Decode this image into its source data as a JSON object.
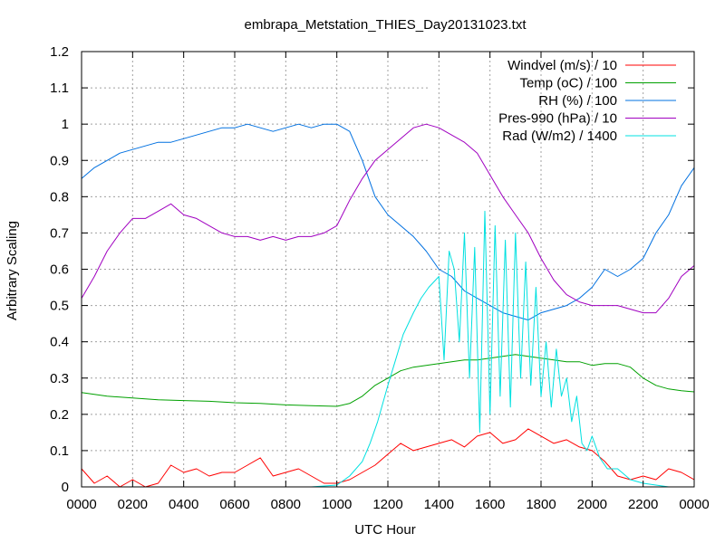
{
  "chart_data": {
    "type": "line",
    "title": "embrapa_Metstation_THIES_Day20131023.txt",
    "xlabel": "UTC Hour",
    "ylabel": "Arbitrary Scaling",
    "xlim": [
      0,
      24
    ],
    "ylim": [
      0,
      1.2
    ],
    "x_ticks": [
      0,
      2,
      4,
      6,
      8,
      10,
      12,
      14,
      16,
      18,
      20,
      22,
      24
    ],
    "x_tick_labels": [
      "0000",
      "0200",
      "0400",
      "0600",
      "0800",
      "1000",
      "1200",
      "1400",
      "1600",
      "1800",
      "2000",
      "2200",
      "0000"
    ],
    "y_ticks": [
      0,
      0.1,
      0.2,
      0.3,
      0.4,
      0.5,
      0.6,
      0.7,
      0.8,
      0.9,
      1,
      1.1,
      1.2
    ],
    "y_tick_labels": [
      "0",
      "0.1",
      "0.2",
      "0.3",
      "0.4",
      "0.5",
      "0.6",
      "0.7",
      "0.8",
      "0.9",
      "1",
      "1.1",
      "1.2"
    ],
    "grid": true,
    "legend_position": "top-right",
    "series": [
      {
        "name": "Windvel (m/s) / 10",
        "color": "#ff0000",
        "x": [
          0,
          0.5,
          1,
          1.5,
          2,
          2.5,
          3,
          3.5,
          4,
          4.5,
          5,
          5.5,
          6,
          6.5,
          7,
          7.5,
          8,
          8.5,
          9,
          9.5,
          10,
          10.5,
          11,
          11.5,
          12,
          12.5,
          13,
          13.5,
          14,
          14.5,
          15,
          15.5,
          16,
          16.5,
          17,
          17.5,
          18,
          18.5,
          19,
          19.5,
          20,
          20.5,
          21,
          21.5,
          22,
          22.5,
          23,
          23.5,
          24
        ],
        "y": [
          0.05,
          0.01,
          0.03,
          0.0,
          0.02,
          0.0,
          0.01,
          0.06,
          0.04,
          0.05,
          0.03,
          0.04,
          0.04,
          0.06,
          0.08,
          0.03,
          0.04,
          0.05,
          0.03,
          0.01,
          0.01,
          0.02,
          0.04,
          0.06,
          0.09,
          0.12,
          0.1,
          0.11,
          0.12,
          0.13,
          0.11,
          0.14,
          0.15,
          0.12,
          0.13,
          0.16,
          0.14,
          0.12,
          0.13,
          0.11,
          0.1,
          0.07,
          0.03,
          0.02,
          0.03,
          0.02,
          0.05,
          0.04,
          0.02
        ]
      },
      {
        "name": "Temp (oC) / 100",
        "color": "#00a000",
        "x": [
          0,
          1,
          2,
          3,
          4,
          5,
          6,
          7,
          8,
          9,
          10,
          10.5,
          11,
          11.5,
          12,
          12.5,
          13,
          13.5,
          14,
          14.5,
          15,
          15.5,
          16,
          16.5,
          17,
          17.5,
          18,
          18.5,
          19,
          19.5,
          20,
          20.5,
          21,
          21.5,
          22,
          22.5,
          23,
          23.5,
          24
        ],
        "y": [
          0.26,
          0.25,
          0.245,
          0.24,
          0.238,
          0.236,
          0.232,
          0.23,
          0.226,
          0.224,
          0.222,
          0.23,
          0.25,
          0.28,
          0.3,
          0.32,
          0.33,
          0.335,
          0.34,
          0.345,
          0.35,
          0.35,
          0.355,
          0.36,
          0.365,
          0.36,
          0.355,
          0.35,
          0.345,
          0.345,
          0.335,
          0.34,
          0.34,
          0.33,
          0.3,
          0.28,
          0.27,
          0.265,
          0.262
        ]
      },
      {
        "name": "RH (%) / 100",
        "color": "#0070e0",
        "x": [
          0,
          0.5,
          1,
          1.5,
          2,
          2.5,
          3,
          3.5,
          4,
          4.5,
          5,
          5.5,
          6,
          6.5,
          7,
          7.5,
          8,
          8.5,
          9,
          9.5,
          10,
          10.5,
          11,
          11.5,
          12,
          12.5,
          13,
          13.5,
          14,
          14.5,
          15,
          15.5,
          16,
          16.5,
          17,
          17.5,
          18,
          18.5,
          19,
          19.5,
          20,
          20.5,
          21,
          21.5,
          22,
          22.5,
          23,
          23.5,
          24
        ],
        "y": [
          0.85,
          0.88,
          0.9,
          0.92,
          0.93,
          0.94,
          0.95,
          0.95,
          0.96,
          0.97,
          0.98,
          0.99,
          0.99,
          1.0,
          0.99,
          0.98,
          0.99,
          1.0,
          0.99,
          1.0,
          1.0,
          0.98,
          0.9,
          0.8,
          0.75,
          0.72,
          0.69,
          0.65,
          0.6,
          0.58,
          0.54,
          0.52,
          0.5,
          0.48,
          0.47,
          0.46,
          0.48,
          0.49,
          0.5,
          0.52,
          0.55,
          0.6,
          0.58,
          0.6,
          0.63,
          0.7,
          0.75,
          0.83,
          0.88
        ]
      },
      {
        "name": "Pres-990 (hPa) / 10",
        "color": "#a000c0",
        "x": [
          0,
          0.5,
          1,
          1.5,
          2,
          2.5,
          3,
          3.5,
          4,
          4.5,
          5,
          5.5,
          6,
          6.5,
          7,
          7.5,
          8,
          8.5,
          9,
          9.5,
          10,
          10.5,
          11,
          11.5,
          12,
          12.5,
          13,
          13.5,
          14,
          14.5,
          15,
          15.5,
          16,
          16.5,
          17,
          17.5,
          18,
          18.5,
          19,
          19.5,
          20,
          20.5,
          21,
          21.5,
          22,
          22.5,
          23,
          23.5,
          24
        ],
        "y": [
          0.52,
          0.58,
          0.65,
          0.7,
          0.74,
          0.74,
          0.76,
          0.78,
          0.75,
          0.74,
          0.72,
          0.7,
          0.69,
          0.69,
          0.68,
          0.69,
          0.68,
          0.69,
          0.69,
          0.7,
          0.72,
          0.79,
          0.85,
          0.9,
          0.93,
          0.96,
          0.99,
          1.0,
          0.99,
          0.97,
          0.95,
          0.92,
          0.86,
          0.8,
          0.75,
          0.7,
          0.63,
          0.57,
          0.53,
          0.51,
          0.5,
          0.5,
          0.5,
          0.49,
          0.48,
          0.48,
          0.52,
          0.58,
          0.61
        ]
      },
      {
        "name": "Rad (W/m2) / 1400",
        "color": "#00e0e0",
        "x": [
          0,
          1,
          2,
          3,
          4,
          5,
          6,
          7,
          8,
          9,
          10,
          10.5,
          11,
          11.3,
          11.6,
          12,
          12.3,
          12.6,
          13,
          13.3,
          13.6,
          14,
          14.2,
          14.4,
          14.6,
          14.8,
          15,
          15.2,
          15.4,
          15.6,
          15.8,
          16,
          16.2,
          16.4,
          16.6,
          16.8,
          17,
          17.2,
          17.4,
          17.6,
          17.8,
          18,
          18.2,
          18.4,
          18.6,
          18.8,
          19,
          19.2,
          19.4,
          19.6,
          19.8,
          20,
          20.3,
          20.6,
          21,
          21.5,
          22,
          23,
          24
        ],
        "y": [
          0,
          0,
          0,
          0,
          0,
          0,
          0,
          0,
          0,
          0,
          0.005,
          0.03,
          0.07,
          0.12,
          0.18,
          0.28,
          0.35,
          0.42,
          0.48,
          0.52,
          0.55,
          0.58,
          0.35,
          0.65,
          0.6,
          0.4,
          0.7,
          0.3,
          0.66,
          0.15,
          0.76,
          0.2,
          0.72,
          0.25,
          0.68,
          0.22,
          0.7,
          0.3,
          0.62,
          0.28,
          0.55,
          0.25,
          0.4,
          0.22,
          0.38,
          0.25,
          0.3,
          0.18,
          0.25,
          0.12,
          0.1,
          0.14,
          0.08,
          0.05,
          0.05,
          0.02,
          0.01,
          0.0,
          0.0
        ]
      }
    ]
  }
}
